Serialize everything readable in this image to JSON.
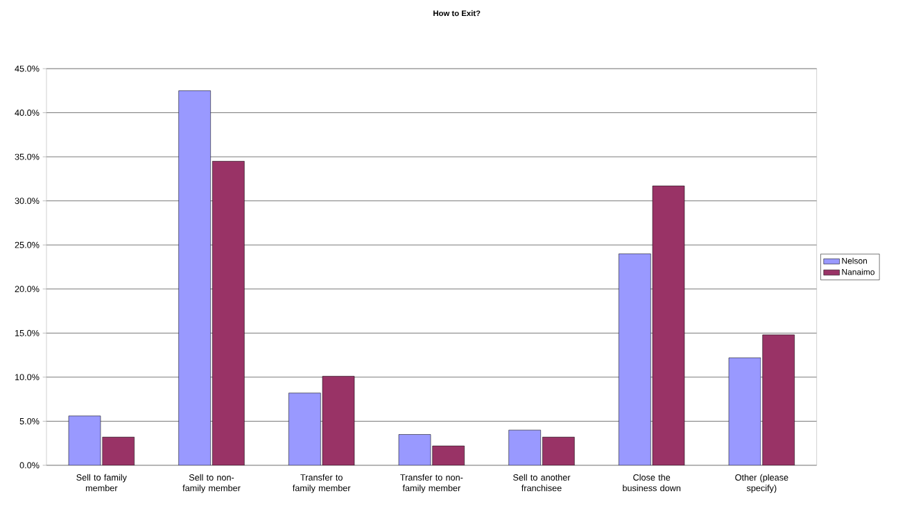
{
  "chart_data": {
    "type": "bar",
    "title": "How to Exit?",
    "categories": [
      "Sell to family member",
      "Sell to non-family member",
      "Transfer to family member",
      "Transfer to non-family member",
      "Sell to another franchisee",
      "Close the business down",
      "Other (please specify)"
    ],
    "series": [
      {
        "name": "Nelson",
        "color": "#9999ff",
        "values": [
          5.6,
          42.5,
          8.2,
          3.5,
          4.0,
          24.0,
          12.2
        ]
      },
      {
        "name": "Nanaimo",
        "color": "#993366",
        "values": [
          3.2,
          34.5,
          10.1,
          2.2,
          3.2,
          31.7,
          14.8
        ]
      }
    ],
    "ylim": [
      0,
      45
    ],
    "yticks": [
      {
        "value": 0,
        "label": "0.0%"
      },
      {
        "value": 5,
        "label": "5.0%"
      },
      {
        "value": 10,
        "label": "10.0%"
      },
      {
        "value": 15,
        "label": "15.0%"
      },
      {
        "value": 20,
        "label": "20.0%"
      },
      {
        "value": 25,
        "label": "25.0%"
      },
      {
        "value": 30,
        "label": "30.0%"
      },
      {
        "value": 35,
        "label": "35.0%"
      },
      {
        "value": 40,
        "label": "40.0%"
      },
      {
        "value": 45,
        "label": "45.0%"
      }
    ],
    "grid": "y",
    "legend": "right"
  }
}
